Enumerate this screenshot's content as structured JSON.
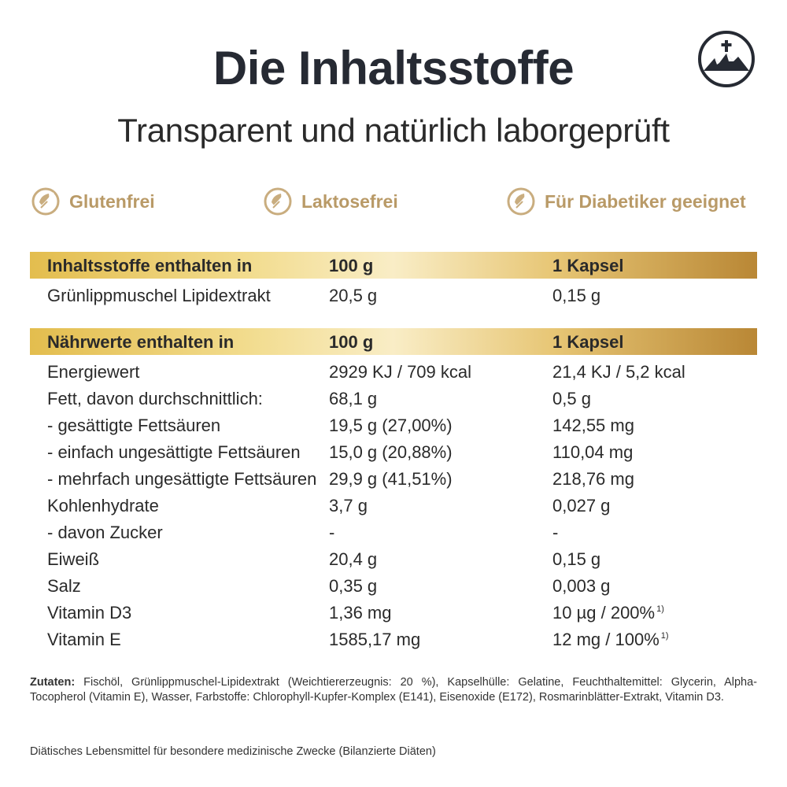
{
  "header": {
    "title": "Die Inhaltsstoffe",
    "subtitle": "Transparent und natürlich laborgeprüft",
    "logo_icon": "mountain-cross-icon"
  },
  "features": [
    {
      "label": "Glutenfrei",
      "icon": "leaf-check-icon"
    },
    {
      "label": "Laktosefrei",
      "icon": "leaf-check-icon"
    },
    {
      "label": "Für Diabetiker geeignet",
      "icon": "leaf-check-icon"
    }
  ],
  "table1": {
    "header": {
      "label": "Inhaltsstoffe enthalten in",
      "col1": "100 g",
      "col2": "1 Kapsel"
    },
    "rows": [
      {
        "label": "Grünlippmuschel Lipidextrakt",
        "col1": "20,5 g",
        "col2": "0,15 g"
      }
    ]
  },
  "table2": {
    "header": {
      "label": "Nährwerte enthalten in",
      "col1": "100 g",
      "col2": "1 Kapsel"
    },
    "rows": [
      {
        "label": "Energiewert",
        "col1": "2929 KJ / 709 kcal",
        "col2": "21,4 KJ / 5,2 kcal"
      },
      {
        "label": "Fett, davon durchschnittlich:",
        "col1": "68,1 g",
        "col2": "0,5 g"
      },
      {
        "label": "- gesättigte Fettsäuren",
        "col1": "19,5 g (27,00%)",
        "col2": "142,55 mg"
      },
      {
        "label": "- einfach ungesättigte Fettsäuren",
        "col1": "15,0 g (20,88%)",
        "col2": "110,04 mg"
      },
      {
        "label": "- mehrfach ungesättigte Fettsäuren",
        "col1": "29,9 g (41,51%)",
        "col2": "218,76 mg"
      },
      {
        "label": "Kohlenhydrate",
        "col1": "3,7 g",
        "col2": "0,027 g"
      },
      {
        "label": "- davon Zucker",
        "col1": "-",
        "col2": "-"
      },
      {
        "label": "Eiweiß",
        "col1": "20,4 g",
        "col2": "0,15 g"
      },
      {
        "label": "Salz",
        "col1": "0,35 g",
        "col2": "0,003 g"
      },
      {
        "label": "Vitamin D3",
        "col1": "1,36 mg",
        "col2": "10 µg / 200%",
        "note": "1)"
      },
      {
        "label": "Vitamin E",
        "col1": "1585,17 mg",
        "col2": "12 mg / 100%",
        "note": "1)"
      }
    ]
  },
  "footer": {
    "ingredients_label": "Zutaten:",
    "ingredients_text": " Fischöl, Grünlippmuschel-Lipidextrakt (Weichtiererzeugnis: 20 %), Kapselhülle: Gelatine, Feuchthaltemittel: Glycerin, Alpha-Tocopherol (Vitamin E), Wasser, Farbstoffe: Chlorophyll-Kupfer-Komplex (E141), Eisenoxide (E172), Rosmarinblätter-Extrakt, Vitamin D3.",
    "note": "Diätisches Lebensmittel für besondere medizinische Zwecke (Bilanzierte Diäten)"
  },
  "colors": {
    "gold_accent": "#b99a67",
    "band_start": "#e3bd4e",
    "band_end": "#b98735",
    "title": "#262a33"
  }
}
